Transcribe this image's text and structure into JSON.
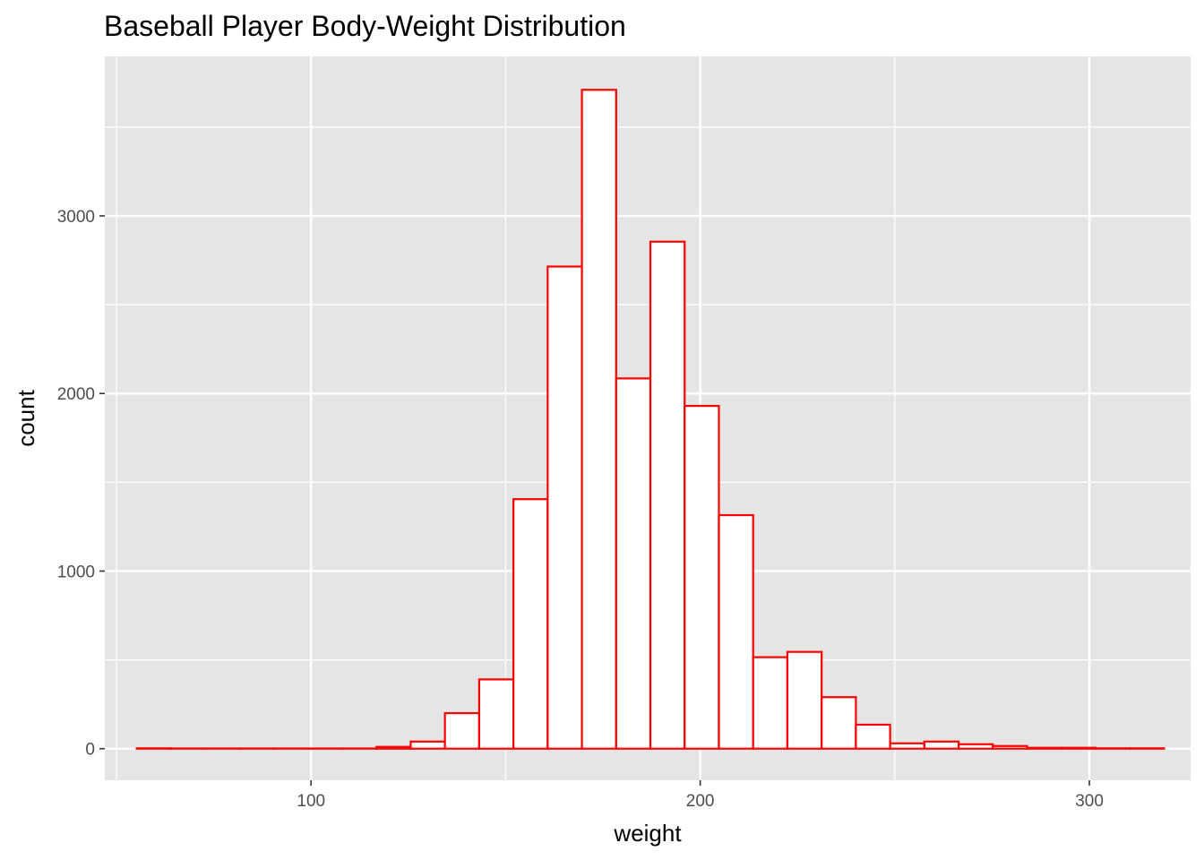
{
  "chart_data": {
    "type": "bar",
    "title": "Baseball Player Body-Weight Distribution",
    "xlabel": "weight",
    "ylabel": "count",
    "xlim": [
      47,
      326
    ],
    "ylim": [
      -178,
      3898
    ],
    "x_ticks": [
      100,
      200,
      300
    ],
    "x_tick_labels": [
      "100",
      "200",
      "300"
    ],
    "y_ticks": [
      0,
      1000,
      2000,
      3000
    ],
    "y_tick_labels": [
      "0",
      "1000",
      "2000",
      "3000"
    ],
    "grid": true,
    "legend": "none",
    "bin_width": 8.8,
    "bins": [
      {
        "x0": 55.2,
        "x1": 64.0,
        "count": 2
      },
      {
        "x0": 64.0,
        "x1": 72.8,
        "count": 1
      },
      {
        "x0": 72.8,
        "x1": 81.6,
        "count": 1
      },
      {
        "x0": 81.6,
        "x1": 90.4,
        "count": 1
      },
      {
        "x0": 90.4,
        "x1": 99.2,
        "count": 1
      },
      {
        "x0": 99.2,
        "x1": 108.0,
        "count": 1
      },
      {
        "x0": 108.0,
        "x1": 116.8,
        "count": 1
      },
      {
        "x0": 116.8,
        "x1": 125.6,
        "count": 10
      },
      {
        "x0": 125.6,
        "x1": 134.4,
        "count": 40
      },
      {
        "x0": 134.4,
        "x1": 143.2,
        "count": 200
      },
      {
        "x0": 143.2,
        "x1": 152.0,
        "count": 390
      },
      {
        "x0": 152.0,
        "x1": 160.8,
        "count": 1405
      },
      {
        "x0": 160.8,
        "x1": 169.6,
        "count": 2715
      },
      {
        "x0": 169.6,
        "x1": 178.4,
        "count": 3710
      },
      {
        "x0": 178.4,
        "x1": 187.2,
        "count": 2085
      },
      {
        "x0": 187.2,
        "x1": 196.0,
        "count": 2855
      },
      {
        "x0": 196.0,
        "x1": 204.8,
        "count": 1930
      },
      {
        "x0": 204.8,
        "x1": 213.6,
        "count": 1315
      },
      {
        "x0": 213.6,
        "x1": 222.4,
        "count": 515
      },
      {
        "x0": 222.4,
        "x1": 231.2,
        "count": 545
      },
      {
        "x0": 231.2,
        "x1": 240.0,
        "count": 290
      },
      {
        "x0": 240.0,
        "x1": 248.8,
        "count": 135
      },
      {
        "x0": 248.8,
        "x1": 257.6,
        "count": 30
      },
      {
        "x0": 257.6,
        "x1": 266.4,
        "count": 40
      },
      {
        "x0": 266.4,
        "x1": 275.2,
        "count": 25
      },
      {
        "x0": 275.2,
        "x1": 284.0,
        "count": 15
      },
      {
        "x0": 284.0,
        "x1": 292.8,
        "count": 5
      },
      {
        "x0": 292.8,
        "x1": 301.6,
        "count": 5
      },
      {
        "x0": 301.6,
        "x1": 310.4,
        "count": 2
      },
      {
        "x0": 310.4,
        "x1": 319.2,
        "count": 2
      }
    ],
    "colors": {
      "panel_background": "#e5e5e5",
      "grid": "#ffffff",
      "bar_fill": "#ffffff",
      "bar_outline": "#ff0000",
      "tick_text": "#4d4d4d",
      "tick_mark": "#333333"
    }
  }
}
